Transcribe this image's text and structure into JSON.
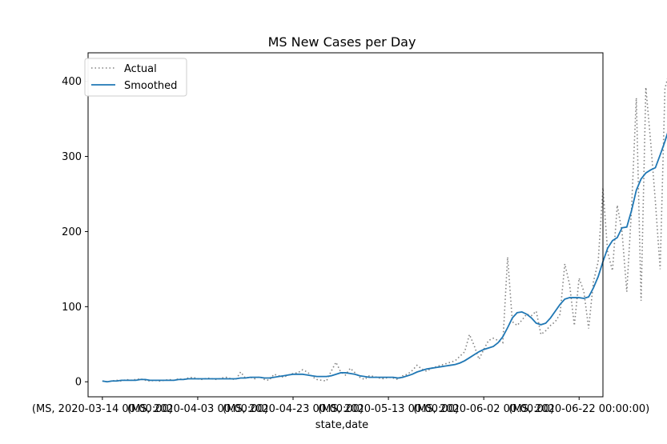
{
  "chart_data": {
    "type": "line",
    "title": "MS New Cases per Day",
    "xlabel": "state,date",
    "ylabel": "",
    "x_start": "2020-03-14",
    "x_end": "2020-06-24",
    "xlim": [
      "2020-03-11",
      "2020-06-27"
    ],
    "ylim": [
      -20,
      438
    ],
    "yticks": [
      0,
      100,
      200,
      300,
      400
    ],
    "xtick_dates": [
      "2020-03-14",
      "2020-04-03",
      "2020-04-23",
      "2020-05-13",
      "2020-06-02",
      "2020-06-22"
    ],
    "xtick_labels": [
      "(MS, 2020-03-14 00:00:00)",
      "(MS, 2020-04-03 00:00:00)",
      "(MS, 2020-04-23 00:00:00)",
      "(MS, 2020-05-13 00:00:00)",
      "(MS, 2020-06-02 00:00:00)",
      "(MS, 2020-06-22 00:00:00)"
    ],
    "grid": false,
    "legend_position": "top-left",
    "series": [
      {
        "name": "Actual",
        "style": "dotted",
        "color": "#808080",
        "values": [
          1,
          0,
          1,
          2,
          1,
          3,
          2,
          3,
          4,
          2,
          1,
          2,
          1,
          2,
          3,
          2,
          4,
          3,
          5,
          6,
          4,
          3,
          5,
          4,
          3,
          5,
          6,
          4,
          3,
          13,
          5,
          6,
          4,
          7,
          3,
          2,
          10,
          8,
          6,
          9,
          11,
          12,
          16,
          13,
          7,
          3,
          2,
          1,
          14,
          26,
          13,
          9,
          18,
          12,
          6,
          3,
          8,
          7,
          5,
          4,
          6,
          5,
          3,
          8,
          10,
          15,
          22,
          17,
          14,
          18,
          20,
          22,
          24,
          26,
          28,
          34,
          40,
          63,
          48,
          30,
          43,
          55,
          58,
          55,
          52,
          166,
          80,
          75,
          82,
          90,
          88,
          94,
          63,
          68,
          75,
          80,
          90,
          157,
          130,
          75,
          138,
          120,
          71,
          133,
          160,
          258,
          172,
          148,
          235,
          200,
          120,
          230,
          378,
          108,
          392,
          320,
          240,
          150,
          390,
          415,
          320,
          390
        ]
      },
      {
        "name": "Smoothed",
        "style": "solid",
        "color": "#1f77b4",
        "values": [
          1,
          0,
          1,
          1,
          2,
          2,
          2,
          2,
          3,
          3,
          2,
          2,
          2,
          2,
          2,
          2,
          3,
          3,
          4,
          4,
          4,
          4,
          4,
          4,
          4,
          4,
          4,
          4,
          4,
          5,
          5,
          6,
          6,
          6,
          5,
          5,
          6,
          7,
          8,
          9,
          10,
          10,
          10,
          9,
          8,
          7,
          7,
          7,
          8,
          10,
          12,
          12,
          11,
          10,
          8,
          7,
          6,
          6,
          6,
          6,
          6,
          6,
          5,
          6,
          8,
          10,
          13,
          15,
          17,
          18,
          19,
          20,
          21,
          22,
          23,
          25,
          28,
          32,
          36,
          40,
          43,
          45,
          47,
          52,
          60,
          72,
          85,
          92,
          93,
          90,
          85,
          78,
          76,
          78,
          85,
          94,
          103,
          110,
          112,
          112,
          112,
          111,
          113,
          125,
          140,
          160,
          178,
          188,
          192,
          205,
          206,
          228,
          255,
          270,
          278,
          282,
          285,
          302,
          320,
          340,
          358,
          376
        ]
      }
    ]
  }
}
